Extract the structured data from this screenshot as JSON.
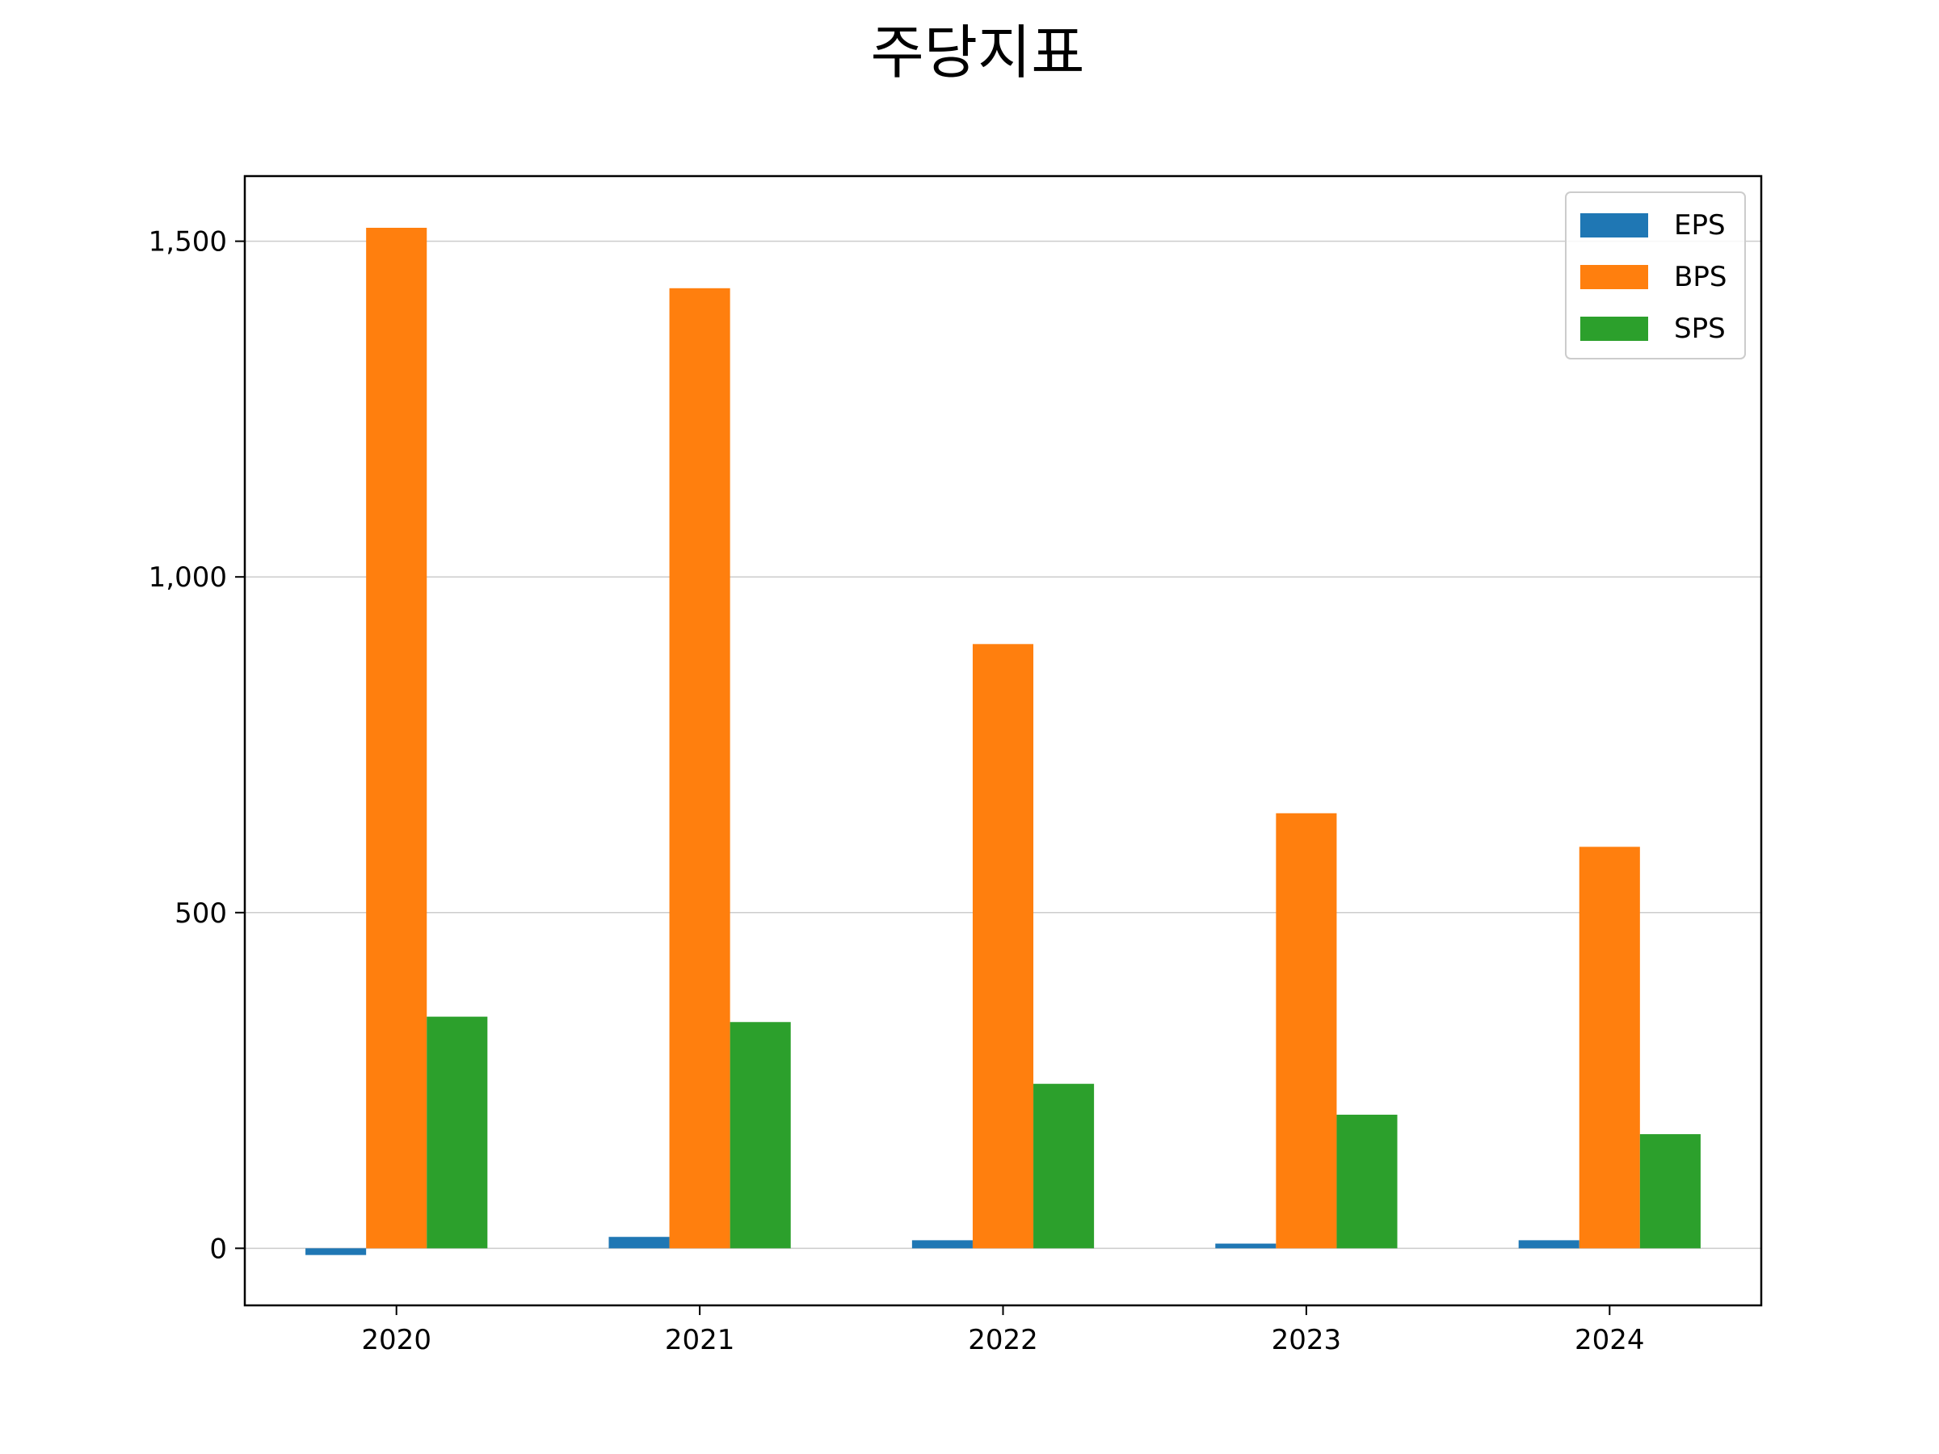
{
  "chart_data": {
    "type": "bar",
    "title": "주당지표",
    "xlabel": "",
    "ylabel": "",
    "categories": [
      "2020",
      "2021",
      "2022",
      "2023",
      "2024"
    ],
    "series": [
      {
        "name": "EPS",
        "color": "#1f77b4",
        "values": [
          -10,
          17,
          12,
          7,
          12
        ]
      },
      {
        "name": "BPS",
        "color": "#ff7f0e",
        "values": [
          1520,
          1430,
          900,
          648,
          598
        ]
      },
      {
        "name": "SPS",
        "color": "#2ca02c",
        "values": [
          345,
          337,
          245,
          199,
          170
        ]
      }
    ],
    "ylim": [
      -85,
      1597
    ],
    "yticks": [
      0,
      500,
      1000,
      1500
    ],
    "ytick_labels": [
      "0",
      "500",
      "1,000",
      "1,500"
    ],
    "grid": "y",
    "legend_position": "top-right"
  }
}
